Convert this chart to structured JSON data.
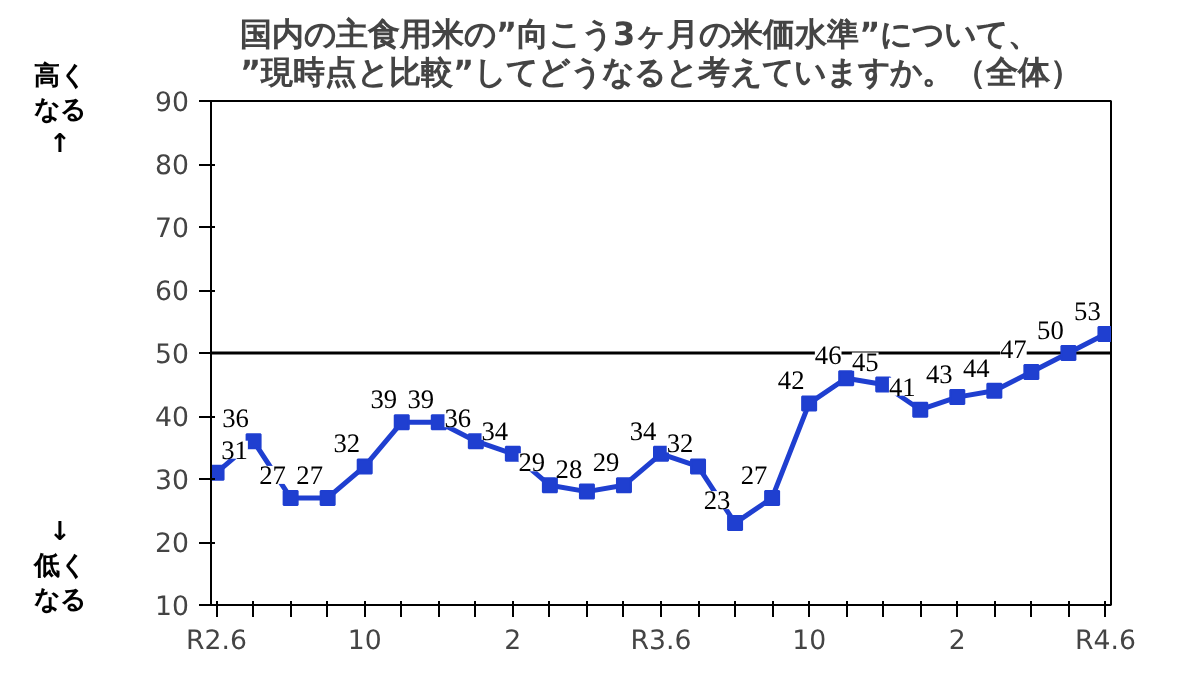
{
  "chart_data": {
    "type": "line",
    "title": "国内の主食用米の”向こう3ヶ月の米価水準”について、\n”現時点と比較”してどうなると考えていますか。（全体）",
    "categories": [
      "R2.6",
      null,
      null,
      null,
      "10",
      null,
      null,
      null,
      "2",
      null,
      null,
      null,
      "R3.6",
      null,
      null,
      null,
      "10",
      null,
      null,
      null,
      "2",
      null,
      null,
      null,
      "R4.6"
    ],
    "series": [
      {
        "color": "#1f3fd0",
        "values": [
          31,
          36,
          27,
          27,
          32,
          39,
          39,
          36,
          34,
          29,
          28,
          29,
          34,
          32,
          23,
          27,
          42,
          46,
          45,
          41,
          43,
          44,
          47,
          50,
          53
        ]
      }
    ],
    "ylim": [
      10,
      90
    ],
    "yticks": [
      10,
      20,
      30,
      40,
      50,
      60,
      70,
      80,
      90
    ],
    "ref_lines": [
      {
        "axis": "y",
        "value": 50,
        "color": "#000000"
      }
    ],
    "annotations": [
      "高くなる",
      "↑",
      "↓",
      "低くなる"
    ],
    "data_labels": true,
    "marker": "square",
    "line_style": "solid",
    "grid": false
  }
}
